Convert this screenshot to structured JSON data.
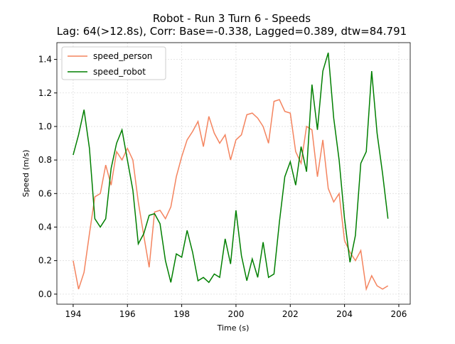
{
  "chart_data": {
    "type": "line",
    "title": "Robot - Run 3 Turn 6 - Speeds",
    "subtitle": "Lag: 64(>12.8s), Corr: Base=-0.338, Lagged=0.389, dtw=84.791",
    "x_label": "Time (s)",
    "y_label": "Speed (m/s)",
    "x": [
      194.0,
      194.2,
      194.4,
      194.6,
      194.8,
      195.0,
      195.2,
      195.4,
      195.6,
      195.8,
      196.0,
      196.2,
      196.4,
      196.6,
      196.8,
      197.0,
      197.2,
      197.4,
      197.6,
      197.8,
      198.0,
      198.2,
      198.4,
      198.6,
      198.8,
      199.0,
      199.2,
      199.4,
      199.6,
      199.8,
      200.0,
      200.2,
      200.4,
      200.6,
      200.8,
      201.0,
      201.2,
      201.4,
      201.6,
      201.8,
      202.0,
      202.2,
      202.4,
      202.6,
      202.8,
      203.0,
      203.2,
      203.4,
      203.6,
      203.8,
      204.0,
      204.2,
      204.4,
      204.6,
      204.8,
      205.0,
      205.2,
      205.4,
      205.6
    ],
    "series": [
      {
        "name": "speed_person",
        "color": "#f4845f",
        "values": [
          0.2,
          0.03,
          0.13,
          0.36,
          0.58,
          0.6,
          0.77,
          0.65,
          0.85,
          0.8,
          0.87,
          0.8,
          0.55,
          0.35,
          0.16,
          0.49,
          0.5,
          0.45,
          0.52,
          0.7,
          0.82,
          0.92,
          0.97,
          1.03,
          0.88,
          1.06,
          0.96,
          0.9,
          0.95,
          0.8,
          0.92,
          0.95,
          1.07,
          1.08,
          1.05,
          1.0,
          0.9,
          1.15,
          1.16,
          1.09,
          1.08,
          0.85,
          0.78,
          1.0,
          0.98,
          0.7,
          0.92,
          0.63,
          0.55,
          0.6,
          0.32,
          0.25,
          0.2,
          0.26,
          0.03,
          0.11,
          0.05,
          0.03,
          0.05
        ]
      },
      {
        "name": "speed_robot",
        "color": "#007f00",
        "values": [
          0.83,
          0.95,
          1.1,
          0.87,
          0.45,
          0.4,
          0.45,
          0.75,
          0.9,
          0.98,
          0.8,
          0.62,
          0.3,
          0.36,
          0.47,
          0.48,
          0.42,
          0.2,
          0.07,
          0.24,
          0.22,
          0.38,
          0.25,
          0.08,
          0.1,
          0.07,
          0.12,
          0.1,
          0.33,
          0.18,
          0.5,
          0.23,
          0.08,
          0.21,
          0.1,
          0.31,
          0.1,
          0.12,
          0.43,
          0.7,
          0.79,
          0.65,
          0.88,
          0.73,
          1.25,
          0.98,
          1.33,
          1.44,
          1.05,
          0.8,
          0.45,
          0.19,
          0.35,
          0.78,
          0.85,
          1.33,
          0.96,
          0.72,
          0.45
        ]
      }
    ],
    "xlim": [
      193.4,
      206.42
    ],
    "ylim": [
      -0.06,
      1.5
    ],
    "xticks": [
      194,
      196,
      198,
      200,
      202,
      204,
      206
    ],
    "yticks": [
      {
        "value": 0,
        "label": "0.0"
      },
      {
        "value": 0.2,
        "label": "0.2"
      },
      {
        "value": 0.4,
        "label": "0.4"
      },
      {
        "value": 0.6,
        "label": "0.6"
      },
      {
        "value": 0.8,
        "label": "0.8"
      },
      {
        "value": 1,
        "label": "1.0"
      },
      {
        "value": 1.2,
        "label": "1.2"
      },
      {
        "value": 1.4,
        "label": "1.4"
      }
    ],
    "grid": true,
    "legend_position": "upper-left"
  }
}
